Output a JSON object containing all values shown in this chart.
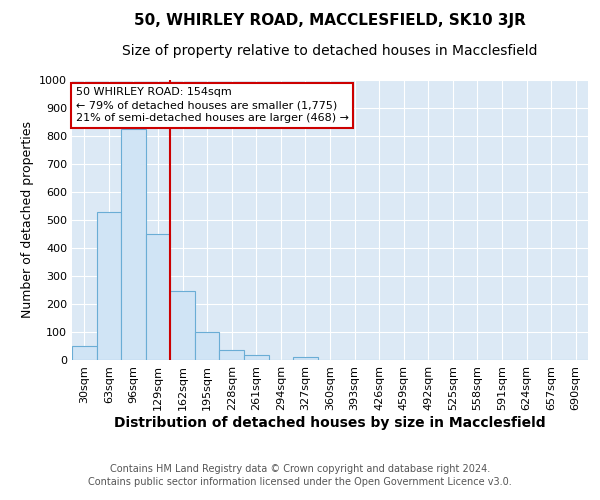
{
  "title": "50, WHIRLEY ROAD, MACCLESFIELD, SK10 3JR",
  "subtitle": "Size of property relative to detached houses in Macclesfield",
  "xlabel": "Distribution of detached houses by size in Macclesfield",
  "ylabel": "Number of detached properties",
  "bar_labels": [
    "30sqm",
    "63sqm",
    "96sqm",
    "129sqm",
    "162sqm",
    "195sqm",
    "228sqm",
    "261sqm",
    "294sqm",
    "327sqm",
    "360sqm",
    "393sqm",
    "426sqm",
    "459sqm",
    "492sqm",
    "525sqm",
    "558sqm",
    "591sqm",
    "624sqm",
    "657sqm",
    "690sqm"
  ],
  "bar_heights": [
    50,
    530,
    825,
    450,
    245,
    100,
    37,
    17,
    0,
    10,
    0,
    0,
    0,
    0,
    0,
    0,
    0,
    0,
    0,
    0,
    0
  ],
  "bar_color": "#d0e4f5",
  "bar_edgecolor": "#6aadd5",
  "bar_linewidth": 0.8,
  "vline_color": "#cc0000",
  "vline_linewidth": 1.5,
  "vline_x_index": 3.5,
  "ylim": [
    0,
    1000
  ],
  "yticks": [
    0,
    100,
    200,
    300,
    400,
    500,
    600,
    700,
    800,
    900,
    1000
  ],
  "annotation_line1": "50 WHIRLEY ROAD: 154sqm",
  "annotation_line2": "← 79% of detached houses are smaller (1,775)",
  "annotation_line3": "21% of semi-detached houses are larger (468) →",
  "annotation_box_facecolor": "#ffffff",
  "annotation_box_edgecolor": "#cc0000",
  "footer_line1": "Contains HM Land Registry data © Crown copyright and database right 2024.",
  "footer_line2": "Contains public sector information licensed under the Open Government Licence v3.0.",
  "fig_facecolor": "#ffffff",
  "plot_bg_color": "#dce9f5",
  "grid_color": "#ffffff",
  "title_fontsize": 11,
  "subtitle_fontsize": 10,
  "ylabel_fontsize": 9,
  "xlabel_fontsize": 10,
  "tick_fontsize": 8,
  "ann_fontsize": 8,
  "footer_fontsize": 7
}
